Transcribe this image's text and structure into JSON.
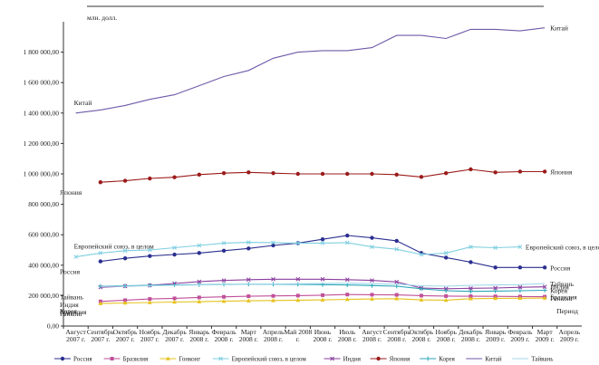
{
  "chart_data": {
    "type": "line",
    "unit_label": "млн. долл.",
    "categories": [
      [
        "Август",
        "2007 г."
      ],
      [
        "Сентябрь",
        "2007 г."
      ],
      [
        "Октябрь",
        "2007 г."
      ],
      [
        "Ноябрь",
        "2007 г."
      ],
      [
        "Декабрь",
        "2007 г."
      ],
      [
        "Январь",
        "2008 г."
      ],
      [
        "Февраль",
        "2008 г."
      ],
      [
        "Март",
        "2008 г."
      ],
      [
        "Апрель",
        "2008 г."
      ],
      [
        "Май 2008",
        "г."
      ],
      [
        "Июнь",
        "2008 г."
      ],
      [
        "Июль",
        "2008 г."
      ],
      [
        "Август",
        "2008 г."
      ],
      [
        "Сентябрь",
        "2008 г."
      ],
      [
        "Октябрь",
        "2008 г."
      ],
      [
        "Ноябрь",
        "2008 г."
      ],
      [
        "Декабрь",
        "2008 г."
      ],
      [
        "Январь",
        "2009 г."
      ],
      [
        "Февраль",
        "2009 г."
      ],
      [
        "Март",
        "2009 г."
      ],
      [
        "Апрель",
        "2009 г."
      ]
    ],
    "yticks": [
      "0,00",
      "200 000,00",
      "400 000,00",
      "600 000,00",
      "800 000,00",
      "1 000 000,00",
      "1 200 000,00",
      "1 400 000,00",
      "1 600 000,00",
      "1 800 000,00"
    ],
    "ylim": [
      0,
      2000000
    ],
    "grid": false,
    "legend_position": "bottom",
    "series": [
      {
        "name": "Россия",
        "color": "#2b2f8f",
        "marker": "circle",
        "values": [
          null,
          425000,
          445000,
          460000,
          470000,
          480000,
          495000,
          510000,
          530000,
          545000,
          570000,
          595000,
          580000,
          560000,
          480000,
          450000,
          420000,
          385000,
          385000,
          385000,
          null
        ]
      },
      {
        "name": "Бразилия",
        "color": "#c0509a",
        "marker": "square",
        "values": [
          null,
          162000,
          170000,
          178000,
          182000,
          188000,
          192000,
          196000,
          198000,
          200000,
          203000,
          207000,
          206000,
          205000,
          200000,
          197000,
          196000,
          195000,
          194000,
          193000,
          null
        ]
      },
      {
        "name": "Гонконг",
        "color": "#e6c21e",
        "marker": "triangle",
        "values": [
          null,
          148000,
          152000,
          155000,
          158000,
          160000,
          163000,
          166000,
          168000,
          170000,
          172000,
          175000,
          178000,
          180000,
          172000,
          170000,
          180000,
          182000,
          183000,
          184000,
          null
        ]
      },
      {
        "name": "Европейский союз, в целом",
        "color": "#7fcfe0",
        "marker": "x",
        "values": [
          455000,
          480000,
          495000,
          500000,
          515000,
          530000,
          545000,
          550000,
          548000,
          545000,
          545000,
          548000,
          520000,
          505000,
          470000,
          480000,
          520000,
          515000,
          520000,
          null,
          null
        ]
      },
      {
        "name": "Индия",
        "color": "#8a3f9e",
        "marker": "x",
        "values": [
          null,
          255000,
          262000,
          268000,
          280000,
          292000,
          300000,
          305000,
          308000,
          308000,
          308000,
          305000,
          300000,
          290000,
          250000,
          245000,
          248000,
          250000,
          255000,
          258000,
          null
        ]
      },
      {
        "name": "Япония",
        "color": "#9b1b1b",
        "marker": "circle",
        "values": [
          null,
          945000,
          955000,
          970000,
          978000,
          995000,
          1005000,
          1010000,
          1005000,
          1000000,
          1000000,
          1000000,
          1000000,
          995000,
          980000,
          1005000,
          1030000,
          1010000,
          1015000,
          1015000,
          null
        ]
      },
      {
        "name": "Корея",
        "color": "#2aa6b8",
        "marker": "plus",
        "values": [
          null,
          262000,
          265000,
          268000,
          270000,
          272000,
          274000,
          275000,
          275000,
          274000,
          272000,
          270000,
          266000,
          262000,
          245000,
          232000,
          228000,
          230000,
          232000,
          235000,
          null
        ]
      },
      {
        "name": "Китай",
        "color": "#6e5aa8",
        "marker": "none",
        "values": [
          1400000,
          1420000,
          1450000,
          1490000,
          1520000,
          1580000,
          1640000,
          1680000,
          1760000,
          1800000,
          1810000,
          1810000,
          1830000,
          1910000,
          1910000,
          1890000,
          1950000,
          1950000,
          1940000,
          1960000,
          null
        ]
      },
      {
        "name": "Тайвань",
        "color": "#9fd7ea",
        "marker": "none",
        "values": [
          null,
          260000,
          262000,
          265000,
          268000,
          270000,
          272000,
          275000,
          276000,
          278000,
          280000,
          282000,
          278000,
          275000,
          265000,
          262000,
          268000,
          270000,
          272000,
          280000,
          null
        ]
      }
    ],
    "annotations": [
      {
        "text": "Китай",
        "series": "Китай",
        "at": 0,
        "place": "above"
      },
      {
        "text": "Китай",
        "series": "Китай",
        "at": 19,
        "place": "right"
      },
      {
        "text": "Япония",
        "series": "Япония",
        "at": 0,
        "place": "left"
      },
      {
        "text": "Япония",
        "series": "Япония",
        "at": 19,
        "place": "right"
      },
      {
        "text": "Европейский союз, в целом",
        "series": "Европейский союз, в целом",
        "at": 0,
        "place": "above"
      },
      {
        "text": "Европейский союз, в целом",
        "series": "Европейский союз, в целом",
        "at": 18,
        "place": "right"
      },
      {
        "text": "Россия",
        "series": "Россия",
        "at": 0,
        "place": "left"
      },
      {
        "text": "Россия",
        "series": "Россия",
        "at": 19,
        "place": "right"
      },
      {
        "text": "Тайвань",
        "series": "Тайвань",
        "at": 0,
        "place": "left"
      },
      {
        "text": "Тайвань",
        "series": "Тайвань",
        "at": 19,
        "place": "right"
      },
      {
        "text": "Индия",
        "series": "Индия",
        "at": 0,
        "place": "left"
      },
      {
        "text": "Индия",
        "series": "Индия",
        "at": 19,
        "place": "right"
      },
      {
        "text": "Корея",
        "series": "Корея",
        "at": 0,
        "place": "left"
      },
      {
        "text": "Корея",
        "series": "Корея",
        "at": 19,
        "place": "right"
      },
      {
        "text": "Бразилия",
        "series": "Бразилия",
        "at": 0,
        "place": "left"
      },
      {
        "text": "Бразилия",
        "series": "Бразилия",
        "at": 19,
        "place": "right"
      },
      {
        "text": "Гонконг",
        "series": "Гонконг",
        "at": 0,
        "place": "left"
      },
      {
        "text": "Гонконг",
        "series": "Гонконг",
        "at": 19,
        "place": "right"
      },
      {
        "text": "Период",
        "series": "",
        "at": 19,
        "place": "axis"
      }
    ]
  }
}
